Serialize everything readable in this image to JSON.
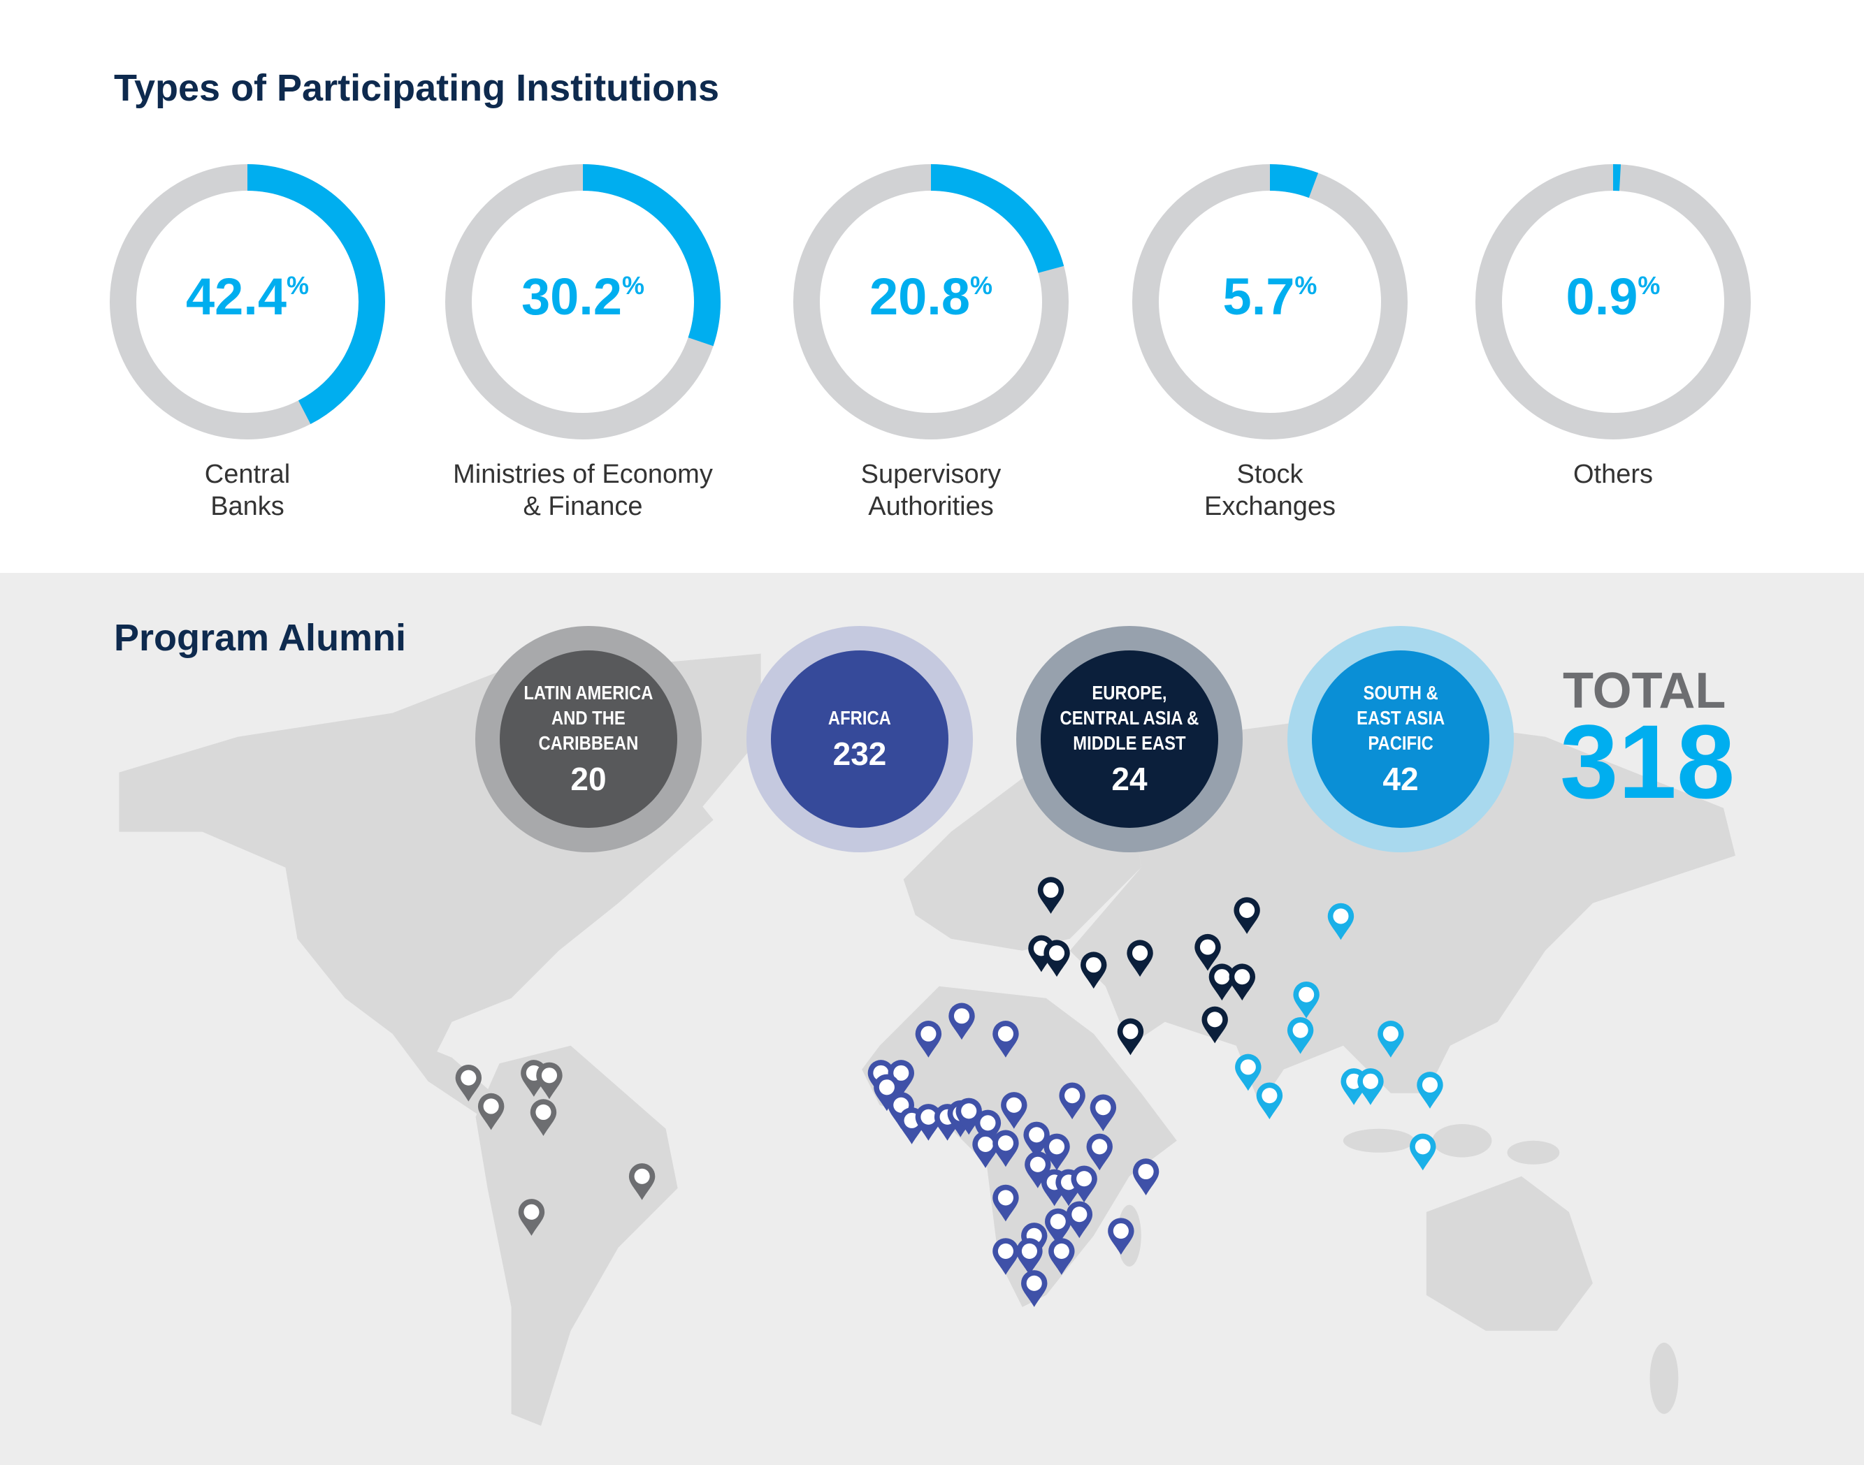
{
  "section1_title": "Types of Participating Institutions",
  "section2_title": "Program Alumni",
  "colors": {
    "accent": "#00aeef",
    "track": "#d1d2d4",
    "navy": "#0e2a4e"
  },
  "chart_data": [
    {
      "type": "pie",
      "title": "Types of Participating Institutions",
      "categories": [
        "Central Banks",
        "Ministries of Economy & Finance",
        "Supervisory Authorities",
        "Stock Exchanges",
        "Others"
      ],
      "values": [
        42.4,
        30.2,
        20.8,
        5.7,
        0.9
      ],
      "unit": "%",
      "donuts": [
        {
          "value": 42.4,
          "display": "42.4",
          "label_line1": "Central",
          "label_line2": "Banks"
        },
        {
          "value": 30.2,
          "display": "30.2",
          "label_line1": "Ministries of Economy",
          "label_line2": "& Finance"
        },
        {
          "value": 20.8,
          "display": "20.8",
          "label_line1": "Supervisory",
          "label_line2": "Authorities"
        },
        {
          "value": 5.7,
          "display": "5.7",
          "label_line1": "Stock",
          "label_line2": "Exchanges"
        },
        {
          "value": 0.9,
          "display": "0.9",
          "label_line1": "Others",
          "label_line2": ""
        }
      ],
      "percent_sign": "%"
    },
    {
      "type": "bar",
      "title": "Program Alumni",
      "categories": [
        "Latin America and the Caribbean",
        "Africa",
        "Europe, Central Asia & Middle East",
        "South & East Asia Pacific"
      ],
      "values": [
        20,
        232,
        24,
        42
      ],
      "regions": [
        {
          "name": "LATIN AMERICA\nAND THE\nCARIBBEAN",
          "value": "20",
          "color": "#58595b",
          "ring": "#a8a9ab"
        },
        {
          "name": "AFRICA",
          "value": "232",
          "color": "#364a9a",
          "ring": "#c5c9df"
        },
        {
          "name": "EUROPE,\nCENTRAL ASIA &\nMIDDLE EAST",
          "value": "24",
          "color": "#0b1f3b",
          "ring": "#97a1ad"
        },
        {
          "name": "SOUTH &\nEAST ASIA\nPACIFIC",
          "value": "42",
          "color": "#0a8fd6",
          "ring": "#a9d9ee"
        }
      ],
      "total_label": "TOTAL",
      "total_value": "318"
    }
  ]
}
